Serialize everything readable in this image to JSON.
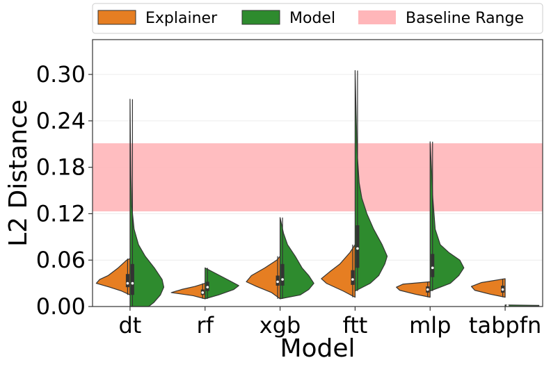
{
  "chart_data": {
    "type": "violin",
    "split": true,
    "xlabel": "Model",
    "ylabel": "L2 Distance",
    "ylim": [
      0.0,
      0.345
    ],
    "yticks": [
      "0.00",
      "0.06",
      "0.12",
      "0.18",
      "0.24",
      "0.30"
    ],
    "ytick_values": [
      0.0,
      0.06,
      0.12,
      0.18,
      0.24,
      0.3
    ],
    "grid": true,
    "legend": {
      "placement": "top",
      "entries": [
        {
          "label": "Explainer",
          "color": "#e67e22"
        },
        {
          "label": "Model",
          "color": "#2e8b2e"
        },
        {
          "label": "Baseline Range",
          "color": "#ffb6b9"
        }
      ]
    },
    "baseline_range": [
      0.123,
      0.211
    ],
    "categories": [
      "dt",
      "rf",
      "xgb",
      "ftt",
      "mlp",
      "tabpfn"
    ],
    "series": [
      {
        "name": "Explainer",
        "color": "#e67e22",
        "violins": [
          {
            "min": 0.015,
            "max": 0.062,
            "median": 0.03,
            "q1": 0.025,
            "q3": 0.042,
            "profile": [
              [
                0.015,
                0.0
              ],
              [
                0.02,
                0.25
              ],
              [
                0.025,
                0.6
              ],
              [
                0.03,
                1.0
              ],
              [
                0.035,
                0.9
              ],
              [
                0.04,
                0.65
              ],
              [
                0.05,
                0.35
              ],
              [
                0.06,
                0.1
              ],
              [
                0.062,
                0.0
              ]
            ]
          },
          {
            "min": 0.01,
            "max": 0.03,
            "median": 0.018,
            "q1": 0.015,
            "q3": 0.022,
            "profile": [
              [
                0.01,
                0.0
              ],
              [
                0.014,
                0.35
              ],
              [
                0.018,
                1.0
              ],
              [
                0.022,
                0.7
              ],
              [
                0.026,
                0.3
              ],
              [
                0.03,
                0.0
              ]
            ]
          },
          {
            "min": 0.01,
            "max": 0.065,
            "median": 0.032,
            "q1": 0.027,
            "q3": 0.04,
            "profile": [
              [
                0.01,
                0.0
              ],
              [
                0.018,
                0.25
              ],
              [
                0.026,
                0.7
              ],
              [
                0.032,
                1.0
              ],
              [
                0.04,
                0.85
              ],
              [
                0.05,
                0.45
              ],
              [
                0.06,
                0.1
              ],
              [
                0.065,
                0.0
              ]
            ]
          },
          {
            "min": 0.012,
            "max": 0.08,
            "median": 0.035,
            "q1": 0.028,
            "q3": 0.047,
            "profile": [
              [
                0.012,
                0.0
              ],
              [
                0.02,
                0.35
              ],
              [
                0.03,
                0.85
              ],
              [
                0.036,
                1.0
              ],
              [
                0.045,
                0.75
              ],
              [
                0.055,
                0.45
              ],
              [
                0.07,
                0.15
              ],
              [
                0.08,
                0.0
              ]
            ]
          },
          {
            "min": 0.012,
            "max": 0.032,
            "median": 0.022,
            "q1": 0.018,
            "q3": 0.026,
            "profile": [
              [
                0.012,
                0.0
              ],
              [
                0.016,
                0.45
              ],
              [
                0.021,
                0.9
              ],
              [
                0.025,
                1.0
              ],
              [
                0.029,
                0.8
              ],
              [
                0.032,
                0.0
              ]
            ]
          },
          {
            "min": 0.012,
            "max": 0.036,
            "median": 0.022,
            "q1": 0.018,
            "q3": 0.027,
            "profile": [
              [
                0.012,
                0.0
              ],
              [
                0.016,
                0.45
              ],
              [
                0.021,
                0.9
              ],
              [
                0.026,
                1.0
              ],
              [
                0.031,
                0.7
              ],
              [
                0.036,
                0.0
              ]
            ]
          }
        ]
      },
      {
        "name": "Model",
        "color": "#2e8b2e",
        "violins": [
          {
            "min": 0.0,
            "max": 0.268,
            "median": 0.03,
            "q1": 0.015,
            "q3": 0.055,
            "profile": [
              [
                0.0,
                0.55
              ],
              [
                0.005,
                0.7
              ],
              [
                0.015,
                0.9
              ],
              [
                0.025,
                1.0
              ],
              [
                0.035,
                0.95
              ],
              [
                0.05,
                0.72
              ],
              [
                0.065,
                0.45
              ],
              [
                0.08,
                0.25
              ],
              [
                0.1,
                0.12
              ],
              [
                0.13,
                0.05
              ],
              [
                0.17,
                0.025
              ],
              [
                0.22,
                0.01
              ],
              [
                0.268,
                0.0
              ]
            ]
          },
          {
            "min": 0.01,
            "max": 0.05,
            "median": 0.025,
            "q1": 0.02,
            "q3": 0.032,
            "profile": [
              [
                0.01,
                0.0
              ],
              [
                0.015,
                0.4
              ],
              [
                0.022,
                0.85
              ],
              [
                0.027,
                1.0
              ],
              [
                0.034,
                0.7
              ],
              [
                0.042,
                0.35
              ],
              [
                0.05,
                0.0
              ]
            ]
          },
          {
            "min": 0.01,
            "max": 0.115,
            "median": 0.035,
            "q1": 0.027,
            "q3": 0.055,
            "profile": [
              [
                0.01,
                0.0
              ],
              [
                0.015,
                0.6
              ],
              [
                0.022,
                0.85
              ],
              [
                0.03,
                1.0
              ],
              [
                0.04,
                0.85
              ],
              [
                0.05,
                0.65
              ],
              [
                0.065,
                0.45
              ],
              [
                0.08,
                0.22
              ],
              [
                0.095,
                0.1
              ],
              [
                0.115,
                0.0
              ]
            ]
          },
          {
            "min": 0.02,
            "max": 0.305,
            "median": 0.075,
            "q1": 0.05,
            "q3": 0.105,
            "profile": [
              [
                0.02,
                0.0
              ],
              [
                0.03,
                0.45
              ],
              [
                0.04,
                0.7
              ],
              [
                0.055,
                0.88
              ],
              [
                0.065,
                0.95
              ],
              [
                0.08,
                0.8
              ],
              [
                0.1,
                0.55
              ],
              [
                0.12,
                0.35
              ],
              [
                0.14,
                0.2
              ],
              [
                0.16,
                0.12
              ],
              [
                0.2,
                0.06
              ],
              [
                0.25,
                0.03
              ],
              [
                0.305,
                0.0
              ]
            ]
          },
          {
            "min": 0.02,
            "max": 0.213,
            "median": 0.05,
            "q1": 0.038,
            "q3": 0.068,
            "profile": [
              [
                0.02,
                0.0
              ],
              [
                0.03,
                0.6
              ],
              [
                0.04,
                0.85
              ],
              [
                0.05,
                1.0
              ],
              [
                0.06,
                0.88
              ],
              [
                0.07,
                0.55
              ],
              [
                0.08,
                0.3
              ],
              [
                0.1,
                0.15
              ],
              [
                0.14,
                0.08
              ],
              [
                0.17,
                0.05
              ],
              [
                0.213,
                0.0
              ]
            ]
          },
          {
            "min": 0.0,
            "max": 0.002,
            "median": 0.001,
            "q1": 0.0005,
            "q3": 0.0015,
            "profile": [
              [
                0.0,
                0.0
              ],
              [
                0.0005,
                1.0
              ],
              [
                0.001,
                1.0
              ],
              [
                0.0015,
                1.0
              ],
              [
                0.002,
                0.0
              ]
            ]
          }
        ]
      }
    ]
  }
}
